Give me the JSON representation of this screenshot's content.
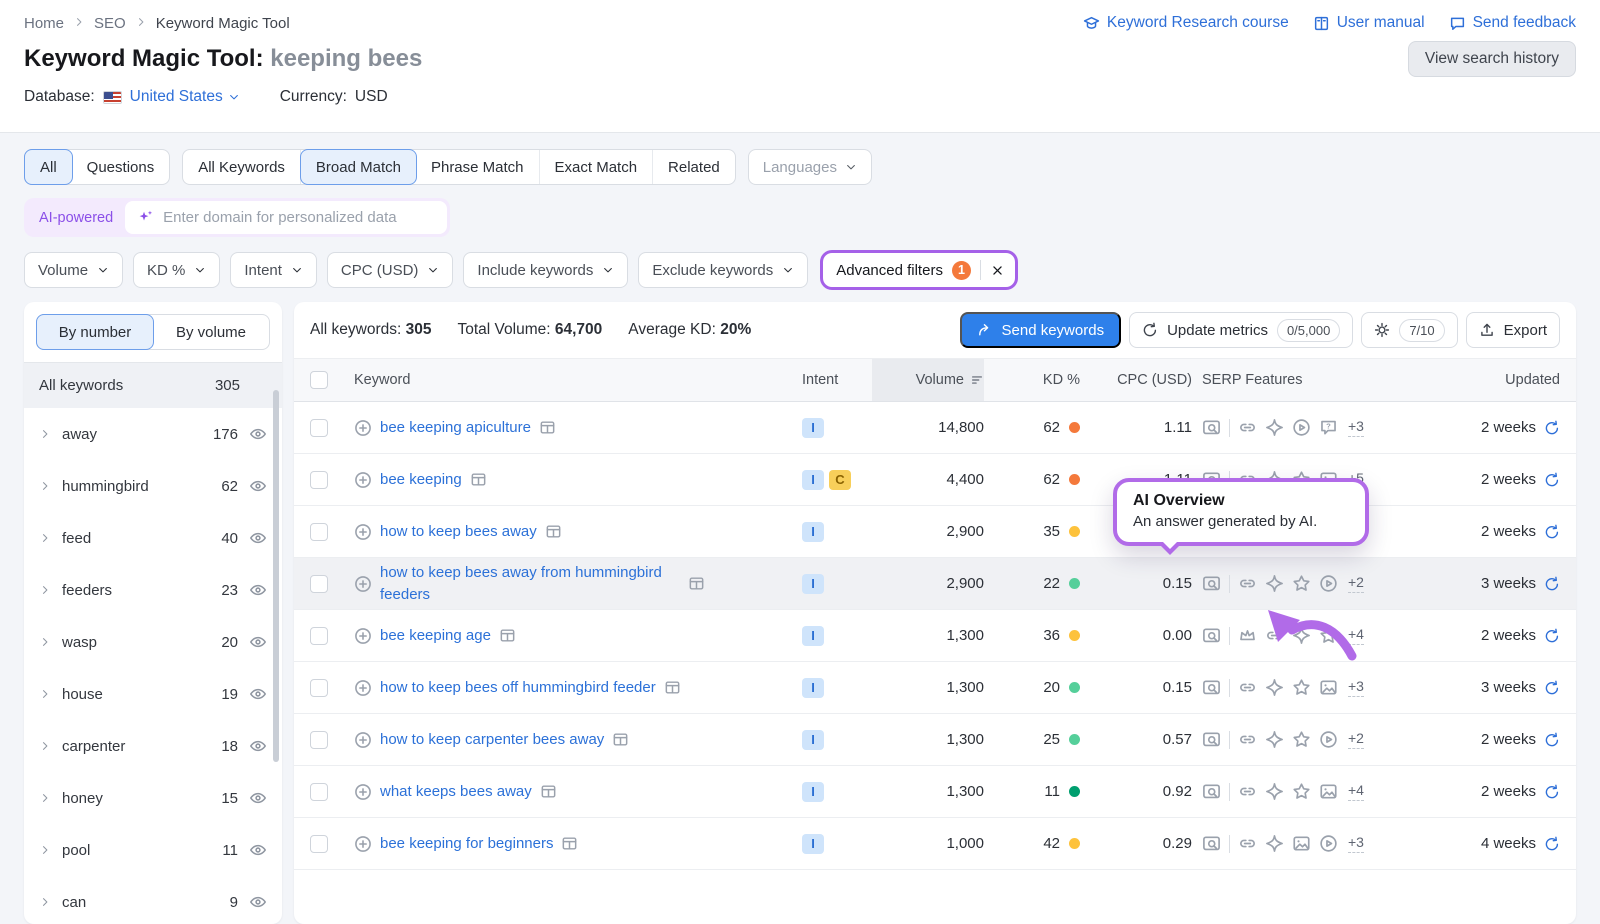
{
  "colors": {
    "accent_purple": "#b16be8",
    "link_blue": "#2e6fd8",
    "primary_button": "#2e80ea",
    "badge_orange": "#f4793b",
    "kd": {
      "hard": "#f4793b",
      "medium": "#fdc23c",
      "easy": "#55cf9a",
      "very_easy": "#009f6f"
    },
    "intent": {
      "I": {
        "bg": "#cfe4fb",
        "text": "#2b6fd3"
      },
      "C": {
        "bg": "#f8cf5a",
        "text": "#8a6200"
      }
    }
  },
  "breadcrumb": {
    "items": [
      "Home",
      "SEO",
      "Keyword Magic Tool"
    ]
  },
  "header_links": [
    {
      "label": "Keyword Research course",
      "icon": "graduation-cap"
    },
    {
      "label": "User manual",
      "icon": "book"
    },
    {
      "label": "Send feedback",
      "icon": "chat"
    }
  ],
  "page": {
    "title": "Keyword Magic Tool:",
    "query": "keeping bees",
    "view_history_label": "View search history"
  },
  "meta": {
    "database_label": "Database:",
    "database_value": "United States",
    "currency_label": "Currency:",
    "currency_value": "USD"
  },
  "match_tabs": {
    "group1": [
      {
        "label": "All",
        "selected": true
      },
      {
        "label": "Questions",
        "selected": false
      }
    ],
    "group2": [
      {
        "label": "All Keywords",
        "selected": false
      },
      {
        "label": "Broad Match",
        "selected": true
      },
      {
        "label": "Phrase Match",
        "selected": false
      },
      {
        "label": "Exact Match",
        "selected": false
      },
      {
        "label": "Related",
        "selected": false
      }
    ],
    "languages_label": "Languages"
  },
  "ai_bar": {
    "badge": "AI-powered",
    "placeholder": "Enter domain for personalized data"
  },
  "filters": [
    "Volume",
    "KD %",
    "Intent",
    "CPC (USD)",
    "Include keywords",
    "Exclude keywords"
  ],
  "advanced_filters": {
    "label": "Advanced filters",
    "count": "1"
  },
  "sidebar": {
    "tabs": [
      {
        "label": "By number",
        "selected": true
      },
      {
        "label": "By volume",
        "selected": false
      }
    ],
    "all_row": {
      "label": "All keywords",
      "count": "305"
    },
    "items": [
      {
        "label": "away",
        "count": "176"
      },
      {
        "label": "hummingbird",
        "count": "62"
      },
      {
        "label": "feed",
        "count": "40"
      },
      {
        "label": "feeders",
        "count": "23"
      },
      {
        "label": "wasp",
        "count": "20"
      },
      {
        "label": "house",
        "count": "19"
      },
      {
        "label": "carpenter",
        "count": "18"
      },
      {
        "label": "honey",
        "count": "15"
      },
      {
        "label": "pool",
        "count": "11"
      },
      {
        "label": "can",
        "count": "9"
      }
    ]
  },
  "stats": {
    "all_keywords_label": "All keywords:",
    "all_keywords_value": "305",
    "total_volume_label": "Total Volume:",
    "total_volume_value": "64,700",
    "average_kd_label": "Average KD:",
    "average_kd_value": "20%"
  },
  "toolbar": {
    "send_keywords": "Send keywords",
    "update_metrics": "Update metrics",
    "update_quota": "0/5,000",
    "columns_quota": "7/10",
    "export": "Export"
  },
  "table": {
    "columns": [
      "Keyword",
      "Intent",
      "Volume",
      "KD %",
      "CPC (USD)",
      "SERP Features",
      "Updated"
    ],
    "rows": [
      {
        "keyword": "bee keeping apiculture",
        "intents": [
          "I"
        ],
        "volume": "14,800",
        "kd": "62",
        "kd_level": "hard",
        "cpc": "1.11",
        "serp_icons": [
          "link",
          "ai-overview",
          "video",
          "reviews"
        ],
        "serp_more": "+3",
        "updated": "2 weeks",
        "highlight": false,
        "two_line": false
      },
      {
        "keyword": "bee keeping",
        "intents": [
          "I",
          "C"
        ],
        "volume": "4,400",
        "kd": "62",
        "kd_level": "hard",
        "cpc": "1.11",
        "serp_icons": [
          "link",
          "ai-overview",
          "star",
          "image"
        ],
        "serp_more": "+5",
        "updated": "2 weeks",
        "highlight": false,
        "two_line": false
      },
      {
        "keyword": "how to keep bees away",
        "intents": [
          "I"
        ],
        "volume": "2,900",
        "kd": "35",
        "kd_level": "medium",
        "cpc": "",
        "serp_icons": [],
        "serp_more": "",
        "updated": "2 weeks",
        "highlight": false,
        "two_line": false
      },
      {
        "keyword": "how to keep bees away from hummingbird feeders",
        "intents": [
          "I"
        ],
        "volume": "2,900",
        "kd": "22",
        "kd_level": "easy",
        "cpc": "0.15",
        "serp_icons": [
          "link",
          "ai-overview",
          "star",
          "video"
        ],
        "serp_more": "+2",
        "updated": "3 weeks",
        "highlight": true,
        "two_line": true
      },
      {
        "keyword": "bee keeping age",
        "intents": [
          "I"
        ],
        "volume": "1,300",
        "kd": "36",
        "kd_level": "medium",
        "cpc": "0.00",
        "serp_icons": [
          "crown",
          "link",
          "ai-overview",
          "star"
        ],
        "serp_more": "+4",
        "updated": "2 weeks",
        "highlight": false,
        "two_line": false
      },
      {
        "keyword": "how to keep bees off hummingbird feeder",
        "intents": [
          "I"
        ],
        "volume": "1,300",
        "kd": "20",
        "kd_level": "easy",
        "cpc": "0.15",
        "serp_icons": [
          "link",
          "ai-overview",
          "star",
          "image"
        ],
        "serp_more": "+3",
        "updated": "3 weeks",
        "highlight": false,
        "two_line": false
      },
      {
        "keyword": "how to keep carpenter bees away",
        "intents": [
          "I"
        ],
        "volume": "1,300",
        "kd": "25",
        "kd_level": "easy",
        "cpc": "0.57",
        "serp_icons": [
          "link",
          "ai-overview",
          "star",
          "video"
        ],
        "serp_more": "+2",
        "updated": "2 weeks",
        "highlight": false,
        "two_line": false
      },
      {
        "keyword": "what keeps bees away",
        "intents": [
          "I"
        ],
        "volume": "1,300",
        "kd": "11",
        "kd_level": "very_easy",
        "cpc": "0.92",
        "serp_icons": [
          "link",
          "ai-overview",
          "star",
          "image"
        ],
        "serp_more": "+4",
        "updated": "2 weeks",
        "highlight": false,
        "two_line": false
      },
      {
        "keyword": "bee keeping for beginners",
        "intents": [
          "I"
        ],
        "volume": "1,000",
        "kd": "42",
        "kd_level": "medium",
        "cpc": "0.29",
        "serp_icons": [
          "link",
          "ai-overview",
          "image",
          "video"
        ],
        "serp_more": "+3",
        "updated": "4 weeks",
        "highlight": false,
        "two_line": false
      }
    ]
  },
  "tooltip": {
    "title": "AI Overview",
    "text": "An answer generated by AI."
  }
}
